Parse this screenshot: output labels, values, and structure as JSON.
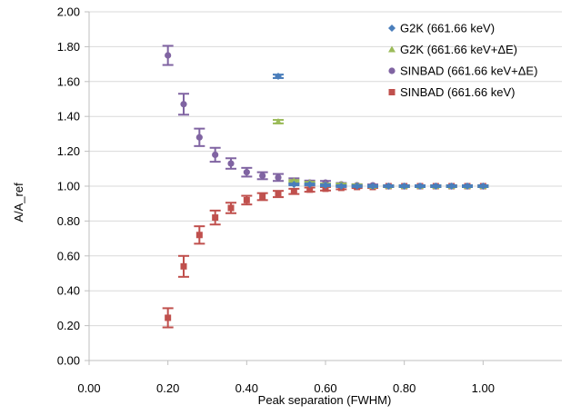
{
  "chart_data": {
    "type": "scatter",
    "title": "",
    "xlabel": "Peak separation (FWHM)",
    "ylabel": "A/A_ref",
    "xlim": [
      0,
      1.2
    ],
    "ylim": [
      0,
      2.0
    ],
    "xticks": [
      0,
      0.2,
      0.4,
      0.6,
      0.8,
      1.0
    ],
    "xtick_labels": [
      "0.00",
      "0.20",
      "0.40",
      "0.60",
      "0.80",
      "1.00"
    ],
    "yticks": [
      0,
      0.2,
      0.4,
      0.6,
      0.8,
      1.0,
      1.2,
      1.4,
      1.6,
      1.8,
      2.0
    ],
    "ytick_labels": [
      "0.00",
      "0.20",
      "0.40",
      "0.60",
      "0.80",
      "1.00",
      "1.20",
      "1.40",
      "1.60",
      "1.80",
      "2.00"
    ],
    "grid": "horizontal",
    "legend_position": "top-right",
    "series": [
      {
        "name": "G2K (661.66 keV)",
        "marker": "diamond",
        "color": "#4a7ebb",
        "points": [
          {
            "x": 0.48,
            "y": 1.63,
            "err": 0.01
          },
          {
            "x": 0.52,
            "y": 1.01,
            "err": 0.005
          },
          {
            "x": 0.56,
            "y": 1.01,
            "err": 0.005
          },
          {
            "x": 0.6,
            "y": 1.005,
            "err": 0.005
          },
          {
            "x": 0.64,
            "y": 1.0,
            "err": 0.005
          },
          {
            "x": 0.68,
            "y": 1.0,
            "err": 0.005
          },
          {
            "x": 0.72,
            "y": 1.0,
            "err": 0.005
          },
          {
            "x": 0.76,
            "y": 1.0,
            "err": 0.005
          },
          {
            "x": 0.8,
            "y": 1.0,
            "err": 0.005
          },
          {
            "x": 0.84,
            "y": 1.0,
            "err": 0.005
          },
          {
            "x": 0.88,
            "y": 1.0,
            "err": 0.005
          },
          {
            "x": 0.92,
            "y": 1.0,
            "err": 0.005
          },
          {
            "x": 0.96,
            "y": 1.0,
            "err": 0.005
          },
          {
            "x": 1.0,
            "y": 1.0,
            "err": 0.005
          }
        ]
      },
      {
        "name": "G2K (661.66 keV+ΔE)",
        "marker": "triangle",
        "color": "#9bbb59",
        "points": [
          {
            "x": 0.48,
            "y": 1.37,
            "err": 0.01
          },
          {
            "x": 0.52,
            "y": 1.03,
            "err": 0.005
          },
          {
            "x": 0.56,
            "y": 1.02,
            "err": 0.005
          },
          {
            "x": 0.6,
            "y": 1.01,
            "err": 0.005
          },
          {
            "x": 0.64,
            "y": 1.01,
            "err": 0.005
          },
          {
            "x": 0.68,
            "y": 1.005,
            "err": 0.005
          },
          {
            "x": 0.72,
            "y": 1.0,
            "err": 0.005
          },
          {
            "x": 0.76,
            "y": 1.0,
            "err": 0.005
          },
          {
            "x": 0.8,
            "y": 1.0,
            "err": 0.005
          },
          {
            "x": 0.84,
            "y": 1.0,
            "err": 0.005
          },
          {
            "x": 0.88,
            "y": 1.0,
            "err": 0.005
          },
          {
            "x": 0.92,
            "y": 1.0,
            "err": 0.005
          },
          {
            "x": 0.96,
            "y": 1.0,
            "err": 0.005
          },
          {
            "x": 1.0,
            "y": 1.0,
            "err": 0.005
          }
        ]
      },
      {
        "name": "SINBAD (661.66 keV+ΔE)",
        "marker": "circle",
        "color": "#8064a2",
        "points": [
          {
            "x": 0.2,
            "y": 1.75,
            "err": 0.055
          },
          {
            "x": 0.24,
            "y": 1.47,
            "err": 0.06
          },
          {
            "x": 0.28,
            "y": 1.28,
            "err": 0.05
          },
          {
            "x": 0.32,
            "y": 1.18,
            "err": 0.04
          },
          {
            "x": 0.36,
            "y": 1.13,
            "err": 0.03
          },
          {
            "x": 0.4,
            "y": 1.08,
            "err": 0.025
          },
          {
            "x": 0.44,
            "y": 1.06,
            "err": 0.02
          },
          {
            "x": 0.48,
            "y": 1.05,
            "err": 0.02
          },
          {
            "x": 0.52,
            "y": 1.03,
            "err": 0.015
          },
          {
            "x": 0.56,
            "y": 1.02,
            "err": 0.012
          },
          {
            "x": 0.6,
            "y": 1.02,
            "err": 0.01
          },
          {
            "x": 0.64,
            "y": 1.01,
            "err": 0.008
          },
          {
            "x": 0.68,
            "y": 1.005,
            "err": 0.006
          },
          {
            "x": 0.72,
            "y": 1.005,
            "err": 0.005
          },
          {
            "x": 0.76,
            "y": 1.0,
            "err": 0.005
          },
          {
            "x": 0.8,
            "y": 1.0,
            "err": 0.005
          },
          {
            "x": 0.84,
            "y": 1.0,
            "err": 0.005
          },
          {
            "x": 0.88,
            "y": 1.0,
            "err": 0.005
          },
          {
            "x": 0.92,
            "y": 1.0,
            "err": 0.005
          },
          {
            "x": 0.96,
            "y": 1.0,
            "err": 0.005
          },
          {
            "x": 1.0,
            "y": 1.0,
            "err": 0.005
          }
        ]
      },
      {
        "name": "SINBAD (661.66 keV)",
        "marker": "square",
        "color": "#c0504d",
        "points": [
          {
            "x": 0.2,
            "y": 0.245,
            "err": 0.055
          },
          {
            "x": 0.24,
            "y": 0.54,
            "err": 0.06
          },
          {
            "x": 0.28,
            "y": 0.72,
            "err": 0.05
          },
          {
            "x": 0.32,
            "y": 0.82,
            "err": 0.04
          },
          {
            "x": 0.36,
            "y": 0.875,
            "err": 0.03
          },
          {
            "x": 0.4,
            "y": 0.92,
            "err": 0.025
          },
          {
            "x": 0.44,
            "y": 0.94,
            "err": 0.02
          },
          {
            "x": 0.48,
            "y": 0.955,
            "err": 0.018
          },
          {
            "x": 0.52,
            "y": 0.97,
            "err": 0.015
          },
          {
            "x": 0.56,
            "y": 0.98,
            "err": 0.012
          },
          {
            "x": 0.6,
            "y": 0.985,
            "err": 0.01
          },
          {
            "x": 0.64,
            "y": 0.99,
            "err": 0.008
          },
          {
            "x": 0.68,
            "y": 0.995,
            "err": 0.006
          },
          {
            "x": 0.72,
            "y": 0.995,
            "err": 0.005
          },
          {
            "x": 0.76,
            "y": 1.0,
            "err": 0.005
          },
          {
            "x": 0.8,
            "y": 1.0,
            "err": 0.005
          },
          {
            "x": 0.84,
            "y": 1.0,
            "err": 0.005
          },
          {
            "x": 0.88,
            "y": 1.0,
            "err": 0.005
          },
          {
            "x": 0.92,
            "y": 1.0,
            "err": 0.005
          },
          {
            "x": 0.96,
            "y": 1.0,
            "err": 0.005
          },
          {
            "x": 1.0,
            "y": 1.0,
            "err": 0.005
          }
        ]
      }
    ]
  }
}
